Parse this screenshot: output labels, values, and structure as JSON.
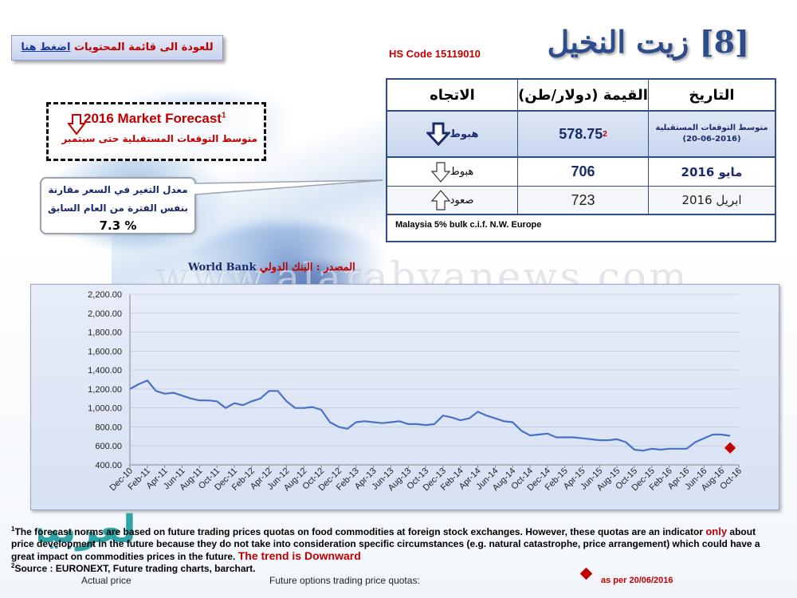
{
  "header": {
    "back_text": "للعودة الى قائمة المحتويات",
    "back_link": "اضغط هنا",
    "hs_code": "HS Code 15119010",
    "title": "[8] زيت النخيل"
  },
  "forecast_box": {
    "title": "2016 Market Forecast",
    "title_sup": "1",
    "subtitle": "متوسط التوقعات المستقبلية حتى سبتمبر",
    "icon": "down-arrow-icon"
  },
  "callout": {
    "line1": "معدل التغير في السعر مقارنة",
    "line2": "بنفس الفترة من العام السابق",
    "value": "7.3 %"
  },
  "table": {
    "headers": {
      "direction": "الاتجاه",
      "value": "القيمة (دولار/طن)",
      "date": "التاريخ"
    },
    "forecast_row": {
      "direction": "هبوط",
      "value": "578.75",
      "value_sup": "2",
      "date_line1": "متوسط التوقعات المستقبلية",
      "date_line2": "(20-06-2016)",
      "icon": "down-arrow-icon"
    },
    "rows": [
      {
        "direction": "هبوط",
        "value": "706",
        "date": "مايو 2016",
        "icon": "down-arrow-icon"
      },
      {
        "direction": "صعود",
        "value": "723",
        "date": "ابريل 2016",
        "icon": "up-arrow-icon"
      }
    ],
    "note": "Malaysia 5% bulk c.i.f. N.W. Europe"
  },
  "source": {
    "arabic": "المصدر : البنك الدولي",
    "english": "World Bank"
  },
  "watermark": "www.alarabyanews.com",
  "logo_text": "العربية",
  "chart_data": {
    "type": "line",
    "ylim": [
      400,
      2200
    ],
    "yticks": [
      "2,200.00",
      "2,000.00",
      "1,800.00",
      "1,600.00",
      "1,400.00",
      "1,200.00",
      "1,000.00",
      "800.00",
      "600.00",
      "400.00"
    ],
    "ytick_values": [
      2200,
      2000,
      1800,
      1600,
      1400,
      1200,
      1000,
      800,
      600,
      400
    ],
    "xticks": [
      "Dec-10",
      "Feb-11",
      "Apr-11",
      "Jun-11",
      "Aug-11",
      "Oct-11",
      "Dec-11",
      "Feb-12",
      "Apr-12",
      "Jun-12",
      "Aug-12",
      "Oct-12",
      "Dec-12",
      "Feb-13",
      "Apr-13",
      "Jun-13",
      "Aug-13",
      "Oct-13",
      "Dec-13",
      "Feb-14",
      "Apr-14",
      "Jun-14",
      "Aug-14",
      "Oct-14",
      "Dec-14",
      "Feb-15",
      "Apr-15",
      "Jun-15",
      "Aug-15",
      "Oct-15",
      "Dec-15",
      "Feb-16",
      "Apr-16",
      "Jun-16",
      "Aug-16",
      "Oct-16"
    ],
    "series": [
      {
        "name": "Actual price",
        "color": "#4a72c4",
        "values": [
          1200,
          1250,
          1290,
          1180,
          1150,
          1160,
          1130,
          1100,
          1080,
          1080,
          1070,
          1000,
          1050,
          1030,
          1070,
          1100,
          1180,
          1180,
          1070,
          1000,
          1000,
          1010,
          980,
          850,
          800,
          780,
          850,
          860,
          850,
          840,
          850,
          860,
          830,
          830,
          820,
          830,
          920,
          900,
          870,
          890,
          960,
          920,
          890,
          860,
          850,
          760,
          710,
          720,
          730,
          690,
          690,
          690,
          680,
          670,
          660,
          660,
          670,
          640,
          560,
          550,
          570,
          560,
          570,
          570,
          570,
          640,
          680,
          720,
          720,
          706
        ]
      },
      {
        "name": "Future options trading price quotas:",
        "color": "#c00000",
        "points": [
          {
            "x": "Sep-16",
            "y": 578.75
          }
        ]
      }
    ]
  },
  "footnotes": {
    "note1_sup": "1",
    "note1_a": "The forecast norms are based on future trading prices quotas on food commodities at foreign stock exchanges. However, these quotas are an indicator",
    "note1_only": "only",
    "note1_b": "about price development in the future because they do not take into consideration specific circumstances (e.g. natural catastrophe, price arrangement) which could have a great impact on commodities prices in the future.",
    "trend": "The trend is Downward",
    "note2_sup": "2",
    "note2": "Source : EURONEXT, Future trading charts, barchart.",
    "legend_actual": "Actual price",
    "legend_future": "Future options trading price quotas:",
    "as_per": "as per 20/06/2016"
  }
}
